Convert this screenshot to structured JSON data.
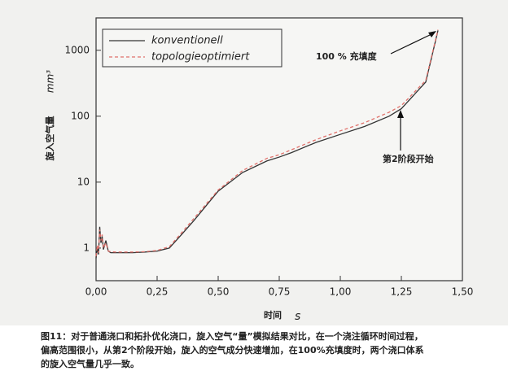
{
  "chart_data": {
    "type": "line",
    "x_label": "时间",
    "x_unit": "s",
    "y_label": "旋入空气量",
    "y_unit": "mm³",
    "annotations": [
      "100 % 充填度",
      "第2阶段开始"
    ],
    "x": [
      0,
      0.005,
      0.01,
      0.015,
      0.02,
      0.025,
      0.03,
      0.04,
      0.05,
      0.06,
      0.08,
      0.1,
      0.15,
      0.2,
      0.25,
      0.3,
      0.35,
      0.4,
      0.5,
      0.6,
      0.7,
      0.75,
      0.8,
      0.9,
      1.0,
      1.1,
      1.2,
      1.25,
      1.35,
      1.4
    ],
    "series": [
      {
        "name": "konventionell",
        "color": "#333333",
        "dash": false,
        "values": [
          0.7,
          1.0,
          0.8,
          2.1,
          1.2,
          1.5,
          0.95,
          1.3,
          0.9,
          0.85,
          0.85,
          0.85,
          0.85,
          0.87,
          0.9,
          1.0,
          1.6,
          2.6,
          7.3,
          14,
          21,
          24,
          28,
          40,
          53,
          70,
          100,
          130,
          330,
          2000
        ]
      },
      {
        "name": "topologieoptimiert",
        "color": "#e0706a",
        "dash": true,
        "values": [
          0.75,
          1.1,
          0.85,
          1.9,
          1.3,
          1.6,
          1.0,
          1.2,
          0.9,
          0.88,
          0.87,
          0.87,
          0.87,
          0.88,
          0.92,
          1.05,
          1.7,
          2.8,
          7.6,
          15,
          23,
          26,
          31,
          44,
          60,
          80,
          115,
          145,
          350,
          2050
        ]
      }
    ],
    "xlim": [
      0,
      1.5
    ],
    "xticks": [
      {
        "value": 0,
        "label": "0,00"
      },
      {
        "value": 0.25,
        "label": "0,25"
      },
      {
        "value": 0.5,
        "label": "0,50"
      },
      {
        "value": 0.75,
        "label": "0,75"
      },
      {
        "value": 1.0,
        "label": "1,00"
      },
      {
        "value": 1.25,
        "label": "1,25"
      },
      {
        "value": 1.5,
        "label": "1,50"
      }
    ],
    "ylim": [
      0.32,
      3100
    ],
    "yticks": [
      1,
      10,
      100,
      1000
    ],
    "ylog": true,
    "legend": "upper left",
    "caption": [
      "图11：对于普通浇口和拓扑优化浇口，旋入空气“量”模拟结果对比，在一个浇注循环时间过程，",
      "偏高范围很小，从第2个阶段开始，旋入的空气成分快速增加，在100%充填度时，两个浇口体系",
      "的旋入空气量几乎一致。"
    ]
  }
}
